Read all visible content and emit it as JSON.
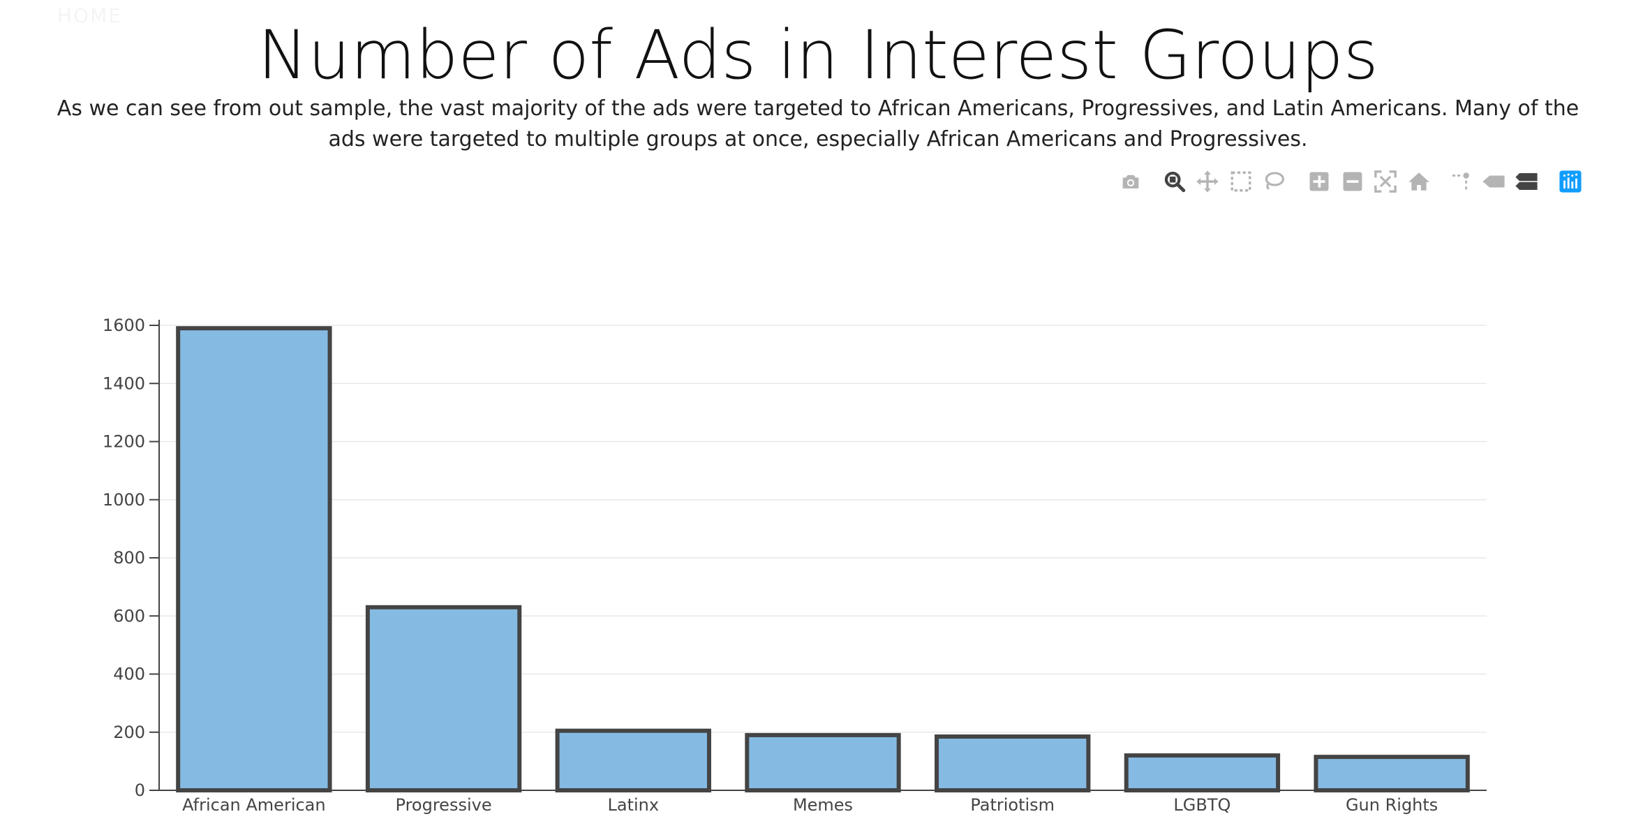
{
  "nav": {
    "home_label": "HOME"
  },
  "header": {
    "title": "Number of Ads in Interest Groups",
    "description": "As we can see from out sample, the vast majority of the ads were targeted to African Americans, Progressives, and Latin Americans. Many of the ads were targeted to multiple groups at once, especially African Americans and Progressives."
  },
  "modebar": {
    "buttons": [
      {
        "name": "camera-icon",
        "title": "Download plot as a png"
      },
      {
        "name": "zoom-icon",
        "title": "Zoom"
      },
      {
        "name": "pan-icon",
        "title": "Pan"
      },
      {
        "name": "box-select-icon",
        "title": "Box Select"
      },
      {
        "name": "lasso-select-icon",
        "title": "Lasso Select"
      },
      {
        "name": "zoom-in-icon",
        "title": "Zoom in"
      },
      {
        "name": "zoom-out-icon",
        "title": "Zoom out"
      },
      {
        "name": "autoscale-icon",
        "title": "Autoscale"
      },
      {
        "name": "reset-axes-icon",
        "title": "Reset axes"
      },
      {
        "name": "spike-lines-icon",
        "title": "Toggle Spike Lines"
      },
      {
        "name": "hover-closest-icon",
        "title": "Show closest data on hover"
      },
      {
        "name": "hover-compare-icon",
        "title": "Compare data on hover"
      },
      {
        "name": "plotly-logo-icon",
        "title": "Produced with Plotly"
      }
    ],
    "colors": {
      "default": "#b4b4b4",
      "active": "#444444",
      "logo": "#119dff"
    }
  },
  "chart_data": {
    "type": "bar",
    "categories": [
      "African American",
      "Progressive",
      "Latinx",
      "Memes",
      "Patriotism",
      "LGBTQ",
      "Gun Rights"
    ],
    "values": [
      1590,
      630,
      205,
      190,
      185,
      120,
      115
    ],
    "title": "",
    "xlabel": "",
    "ylabel": "",
    "ylim": [
      0,
      1600
    ],
    "yticks": [
      0,
      200,
      400,
      600,
      800,
      1000,
      1200,
      1400,
      1600
    ],
    "grid": true,
    "legend": "none",
    "colors": {
      "bar_fill": "#85bbe3",
      "bar_outline": "#444444",
      "grid": "#e8e8e8",
      "axis": "#444444"
    }
  }
}
